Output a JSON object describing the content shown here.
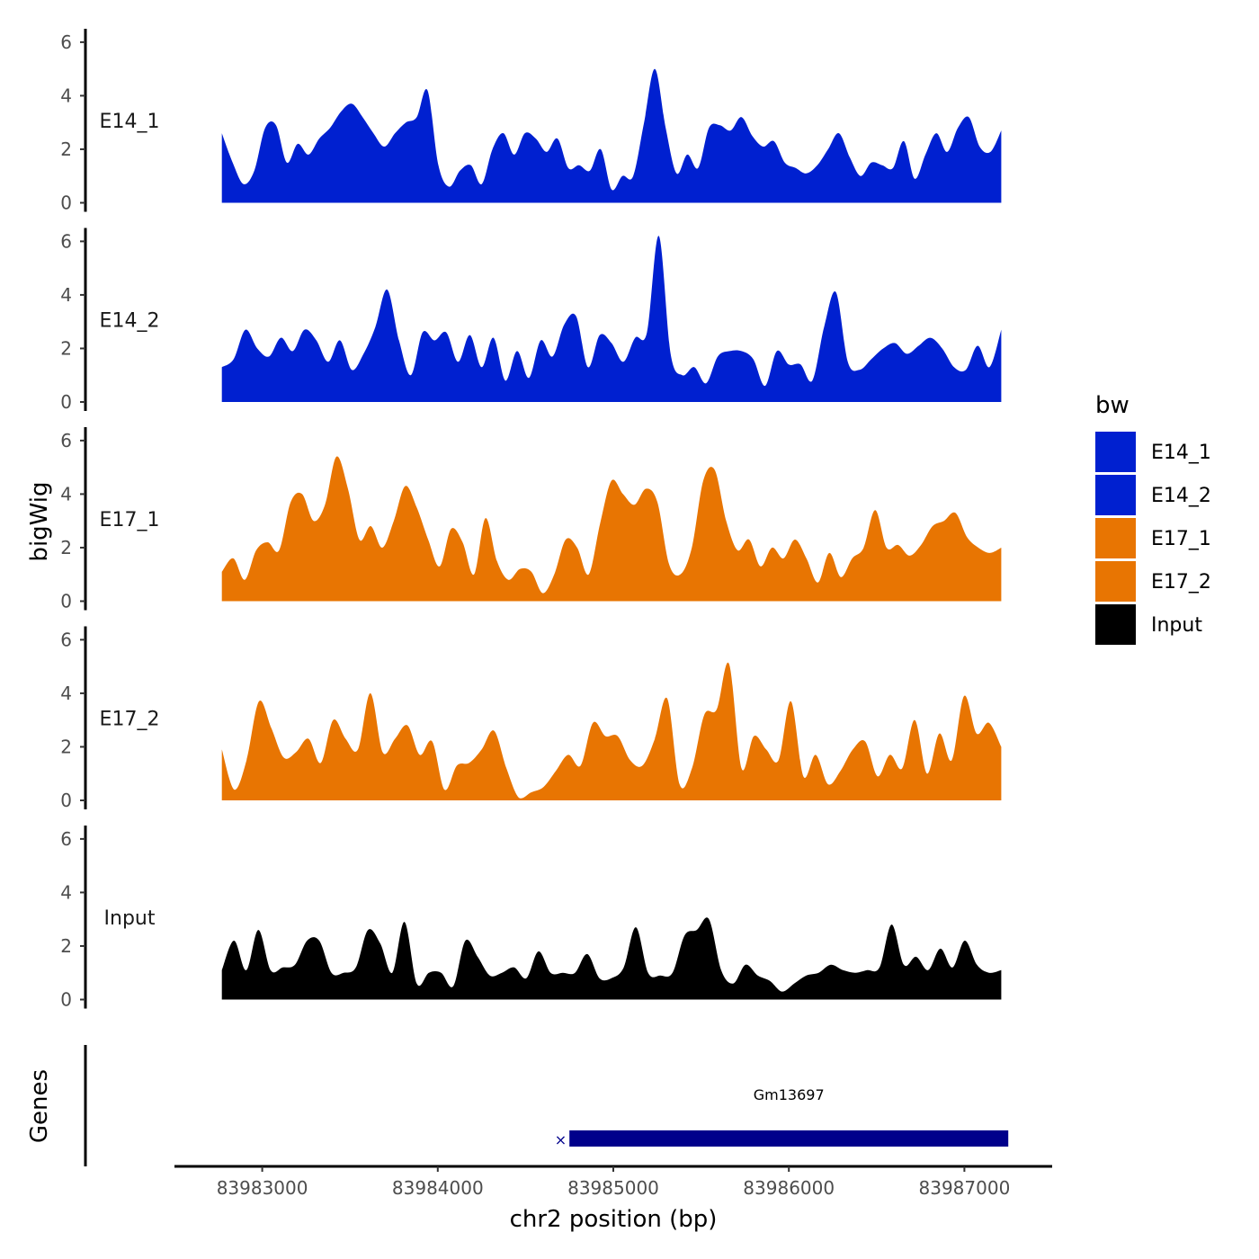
{
  "chart_data": {
    "type": "area",
    "ylabel": "bigWig",
    "xlabel": "chr2 position (bp)",
    "ylim": [
      0,
      6.5
    ],
    "y_ticks": [
      "0",
      "2",
      "4",
      "6"
    ],
    "y_tick_values": [
      0,
      2,
      4,
      6
    ],
    "xlim": [
      83982500,
      83987500
    ],
    "x_ticks": [
      "83983000",
      "83984000",
      "83985000",
      "83986000",
      "83987000"
    ],
    "x_tick_values": [
      83983000,
      83984000,
      83985000,
      83986000,
      83987000
    ],
    "x_start": 83982770,
    "x_end": 83987210,
    "series": [
      {
        "name": "E14_1",
        "color": "#0020D0",
        "values": [
          2.6,
          1.5,
          0.7,
          1.2,
          2.8,
          2.9,
          1.5,
          2.2,
          1.8,
          2.4,
          2.8,
          3.4,
          3.7,
          3.2,
          2.6,
          2.1,
          2.6,
          3.0,
          3.2,
          4.2,
          1.4,
          0.6,
          1.2,
          1.4,
          0.7,
          2.0,
          2.6,
          1.8,
          2.6,
          2.4,
          1.9,
          2.4,
          1.3,
          1.4,
          1.2,
          2.0,
          0.5,
          1.0,
          1.0,
          3.0,
          5.0,
          2.8,
          1.1,
          1.8,
          1.3,
          2.8,
          2.9,
          2.7,
          3.2,
          2.5,
          2.1,
          2.3,
          1.5,
          1.3,
          1.1,
          1.4,
          2.0,
          2.6,
          1.7,
          1.0,
          1.5,
          1.4,
          1.3,
          2.3,
          0.9,
          1.8,
          2.6,
          1.9,
          2.8,
          3.2,
          2.1,
          1.9,
          2.7
        ]
      },
      {
        "name": "E14_2",
        "color": "#0020D0",
        "values": [
          1.3,
          1.6,
          2.7,
          2.0,
          1.7,
          2.4,
          1.9,
          2.7,
          2.3,
          1.5,
          2.3,
          1.2,
          1.8,
          2.8,
          4.2,
          2.3,
          1.0,
          2.6,
          2.3,
          2.6,
          1.5,
          2.5,
          1.3,
          2.4,
          0.8,
          1.9,
          0.9,
          2.3,
          1.7,
          2.9,
          3.2,
          1.3,
          2.5,
          2.2,
          1.5,
          2.4,
          2.6,
          6.2,
          1.8,
          1.0,
          1.3,
          0.7,
          1.7,
          1.9,
          1.9,
          1.6,
          0.6,
          1.9,
          1.4,
          1.4,
          0.8,
          2.8,
          4.1,
          1.5,
          1.2,
          1.6,
          2.0,
          2.2,
          1.8,
          2.1,
          2.4,
          2.0,
          1.3,
          1.2,
          2.1,
          1.3,
          2.7
        ]
      },
      {
        "name": "E17_1",
        "color": "#E87502",
        "values": [
          1.1,
          1.6,
          0.8,
          1.9,
          2.2,
          1.9,
          3.7,
          4.0,
          3.0,
          3.6,
          5.4,
          4.2,
          2.3,
          2.8,
          2.0,
          3.0,
          4.3,
          3.5,
          2.3,
          1.3,
          2.7,
          2.2,
          1.0,
          3.1,
          1.5,
          0.8,
          1.2,
          1.1,
          0.3,
          1.0,
          2.3,
          2.0,
          1.0,
          2.9,
          4.5,
          4.0,
          3.6,
          4.2,
          3.7,
          1.4,
          1.0,
          2.0,
          4.5,
          4.9,
          3.0,
          1.9,
          2.3,
          1.3,
          2.0,
          1.6,
          2.3,
          1.6,
          0.7,
          1.8,
          0.9,
          1.6,
          2.0,
          3.4,
          2.0,
          2.1,
          1.7,
          2.1,
          2.8,
          3.0,
          3.3,
          2.4,
          2.0,
          1.8,
          2.0
        ]
      },
      {
        "name": "E17_2",
        "color": "#E87502",
        "values": [
          1.9,
          0.4,
          1.5,
          3.7,
          2.7,
          1.6,
          1.8,
          2.3,
          1.4,
          3.0,
          2.3,
          1.9,
          4.0,
          1.8,
          2.3,
          2.8,
          1.7,
          2.2,
          0.4,
          1.3,
          1.4,
          1.9,
          2.6,
          1.2,
          0.1,
          0.3,
          0.5,
          1.1,
          1.7,
          1.3,
          2.9,
          2.4,
          2.4,
          1.5,
          1.3,
          2.3,
          3.8,
          0.6,
          1.2,
          3.2,
          3.4,
          5.1,
          1.2,
          2.4,
          1.9,
          1.5,
          3.7,
          0.9,
          1.7,
          0.6,
          1.1,
          1.9,
          2.2,
          0.9,
          1.7,
          1.2,
          3.0,
          1.0,
          2.5,
          1.5,
          3.9,
          2.5,
          2.9,
          2.0
        ]
      },
      {
        "name": "Input",
        "color": "#000000",
        "values": [
          1.1,
          2.2,
          1.1,
          2.6,
          1.1,
          1.2,
          1.3,
          2.2,
          2.2,
          1.0,
          1.0,
          1.2,
          2.6,
          2.1,
          1.0,
          2.9,
          0.6,
          1.0,
          1.0,
          0.5,
          2.2,
          1.6,
          0.9,
          1.0,
          1.2,
          0.8,
          1.8,
          1.0,
          1.0,
          1.0,
          1.7,
          0.8,
          0.8,
          1.2,
          2.7,
          1.0,
          0.9,
          1.0,
          2.4,
          2.6,
          3.0,
          1.1,
          0.6,
          1.3,
          0.9,
          0.7,
          0.3,
          0.6,
          0.9,
          1.0,
          1.3,
          1.1,
          1.0,
          1.1,
          1.2,
          2.8,
          1.3,
          1.6,
          1.1,
          1.9,
          1.2,
          2.2,
          1.3,
          1.0,
          1.1
        ]
      }
    ],
    "genes_track_label": "Genes",
    "gene": {
      "name": "Gm13697",
      "start": 83984750,
      "end": 83987250,
      "color": "#00008B"
    },
    "legend": {
      "title": "bw",
      "position": "right",
      "entries": [
        "E14_1",
        "E14_2",
        "E17_1",
        "E17_2",
        "Input"
      ]
    }
  }
}
